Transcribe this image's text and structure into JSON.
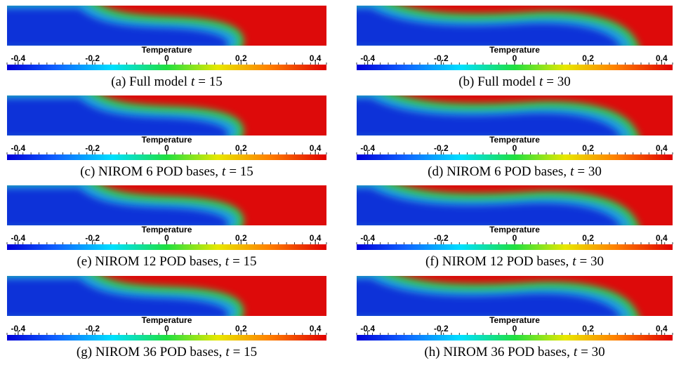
{
  "colorbar": {
    "label": "Temperature",
    "range": [
      -0.43,
      0.43
    ],
    "ticks": [
      -0.4,
      -0.2,
      0,
      0.2,
      0.4
    ]
  },
  "panels": [
    {
      "prefix": "(a) Full model",
      "var": "t",
      "eq": "= 15"
    },
    {
      "prefix": "(b) Full model",
      "var": "t",
      "eq": "= 30"
    },
    {
      "prefix": "(c) NIROM 6 POD bases,",
      "var": "t",
      "eq": "= 15"
    },
    {
      "prefix": "(d) NIROM 6 POD bases,",
      "var": "t",
      "eq": "= 30"
    },
    {
      "prefix": "(e) NIROM 12 POD bases,",
      "var": "t",
      "eq": "= 15"
    },
    {
      "prefix": "(f) NIROM 12 POD bases,",
      "var": "t",
      "eq": "= 30"
    },
    {
      "prefix": "(g) NIROM 36 POD bases,",
      "var": "t",
      "eq": "= 15"
    },
    {
      "prefix": "(h) NIROM 36 POD bases,",
      "var": "t",
      "eq": "= 30"
    }
  ]
}
